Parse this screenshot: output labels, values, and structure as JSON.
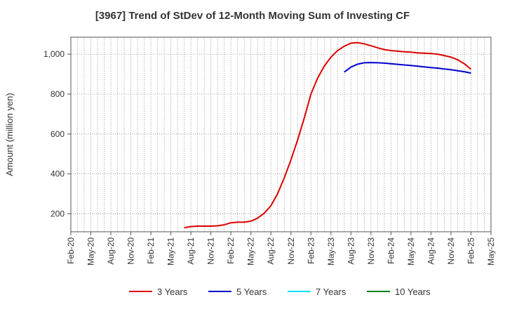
{
  "chart_data": {
    "type": "line",
    "title": "[3967]  Trend of StDev of 12-Month Moving Sum of Investing CF",
    "xlabel": "",
    "ylabel": "Amount (million yen)",
    "x_tick_labels": [
      "Feb-20",
      "May-20",
      "Aug-20",
      "Nov-20",
      "Feb-21",
      "May-21",
      "Aug-21",
      "Nov-21",
      "Feb-22",
      "May-22",
      "Aug-22",
      "Nov-22",
      "Feb-23",
      "May-23",
      "Aug-23",
      "Nov-23",
      "Feb-24",
      "May-24",
      "Aug-24",
      "Nov-24",
      "Feb-25",
      "May-25"
    ],
    "x_range": [
      "Feb-20",
      "May-25"
    ],
    "ylim": [
      110,
      1085
    ],
    "y_ticks": [
      200,
      400,
      600,
      800,
      1000
    ],
    "y_tick_labels": [
      "200",
      "400",
      "600",
      "800",
      "1,000"
    ],
    "grid": true,
    "legend_position": "bottom",
    "series": [
      {
        "name": "3 Years",
        "color": "#dd0000",
        "points": [
          [
            "Jul-21",
            130
          ],
          [
            "Aug-21",
            136
          ],
          [
            "Sep-21",
            138
          ],
          [
            "Oct-21",
            138
          ],
          [
            "Nov-21",
            138
          ],
          [
            "Dec-21",
            140
          ],
          [
            "Jan-22",
            145
          ],
          [
            "Feb-22",
            155
          ],
          [
            "Mar-22",
            158
          ],
          [
            "Apr-22",
            158
          ],
          [
            "May-22",
            163
          ],
          [
            "Jun-22",
            178
          ],
          [
            "Jul-22",
            203
          ],
          [
            "Aug-22",
            240
          ],
          [
            "Sep-22",
            300
          ],
          [
            "Oct-22",
            380
          ],
          [
            "Nov-22",
            470
          ],
          [
            "Dec-22",
            570
          ],
          [
            "Jan-23",
            680
          ],
          [
            "Feb-23",
            800
          ],
          [
            "Mar-23",
            880
          ],
          [
            "Apr-23",
            940
          ],
          [
            "May-23",
            985
          ],
          [
            "Jun-23",
            1018
          ],
          [
            "Jul-23",
            1040
          ],
          [
            "Aug-23",
            1055
          ],
          [
            "Sep-23",
            1058
          ],
          [
            "Oct-23",
            1052
          ],
          [
            "Nov-23",
            1042
          ],
          [
            "Dec-23",
            1032
          ],
          [
            "Jan-24",
            1023
          ],
          [
            "Feb-24",
            1018
          ],
          [
            "Mar-24",
            1015
          ],
          [
            "Apr-24",
            1012
          ],
          [
            "May-24",
            1010
          ],
          [
            "Jun-24",
            1007
          ],
          [
            "Jul-24",
            1005
          ],
          [
            "Aug-24",
            1003
          ],
          [
            "Sep-24",
            1000
          ],
          [
            "Oct-24",
            993
          ],
          [
            "Nov-24",
            985
          ],
          [
            "Dec-24",
            972
          ],
          [
            "Jan-25",
            952
          ],
          [
            "Feb-25",
            925
          ]
        ]
      },
      {
        "name": "5 Years",
        "color": "#0000cc",
        "points": [
          [
            "Jul-23",
            910
          ],
          [
            "Aug-23",
            935
          ],
          [
            "Sep-23",
            950
          ],
          [
            "Oct-23",
            957
          ],
          [
            "Nov-23",
            958
          ],
          [
            "Dec-23",
            957
          ],
          [
            "Jan-24",
            955
          ],
          [
            "Feb-24",
            952
          ],
          [
            "Mar-24",
            949
          ],
          [
            "Apr-24",
            946
          ],
          [
            "May-24",
            943
          ],
          [
            "Jun-24",
            940
          ],
          [
            "Jul-24",
            936
          ],
          [
            "Aug-24",
            933
          ],
          [
            "Sep-24",
            930
          ],
          [
            "Oct-24",
            926
          ],
          [
            "Nov-24",
            922
          ],
          [
            "Dec-24",
            917
          ],
          [
            "Jan-25",
            912
          ],
          [
            "Feb-25",
            905
          ]
        ]
      },
      {
        "name": "7 Years",
        "color": "#00e5ee",
        "points": []
      },
      {
        "name": "10 Years",
        "color": "#008000",
        "points": []
      }
    ]
  }
}
